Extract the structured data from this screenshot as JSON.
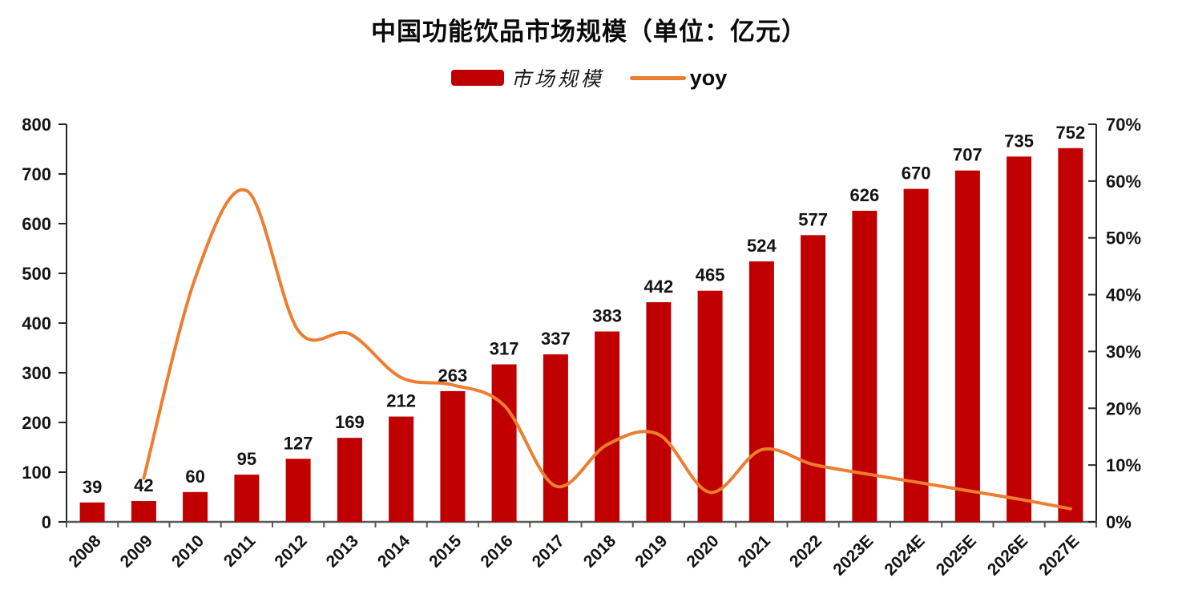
{
  "chart_data": {
    "type": "bar",
    "combo": "bar+line",
    "title": "中国功能饮品市场规模（单位：亿元）",
    "unit": "亿元",
    "legend_position": "top",
    "grid": false,
    "bar_value_labels_shown": true,
    "categories": [
      "2008",
      "2009",
      "2010",
      "2011",
      "2012",
      "2013",
      "2014",
      "2015",
      "2016",
      "2017",
      "2018",
      "2019",
      "2020",
      "2021",
      "2022",
      "2023E",
      "2024E",
      "2025E",
      "2026E",
      "2027E"
    ],
    "series": [
      {
        "name": "市场规模",
        "chart_type": "bar",
        "axis": "left",
        "color": "#C00000",
        "values": [
          39,
          42,
          60,
          95,
          127,
          169,
          212,
          263,
          317,
          337,
          383,
          442,
          465,
          524,
          577,
          626,
          670,
          707,
          735,
          752
        ]
      },
      {
        "name": "yoy",
        "chart_type": "line",
        "axis": "right",
        "color": "#ED7D31",
        "values_pct": [
          null,
          7.7,
          42.9,
          58.3,
          33.7,
          33.1,
          25.4,
          24.1,
          20.5,
          6.3,
          13.6,
          15.4,
          5.2,
          12.7,
          10.1,
          8.5,
          7.0,
          5.5,
          4.0,
          2.3
        ]
      }
    ],
    "left_axis": {
      "min": 0,
      "max": 800,
      "step": 100,
      "tick_labels": [
        "0",
        "100",
        "200",
        "300",
        "400",
        "500",
        "600",
        "700",
        "800"
      ]
    },
    "right_axis": {
      "min": 0,
      "max": 70,
      "step": 10,
      "suffix": "%",
      "tick_labels": [
        "0%",
        "10%",
        "20%",
        "30%",
        "40%",
        "50%",
        "60%",
        "70%"
      ]
    },
    "colors": {
      "bar": "#C00000",
      "line": "#ED7D31",
      "axis": "#262626",
      "axis_bottom": "#595959",
      "text": "#141414"
    }
  }
}
